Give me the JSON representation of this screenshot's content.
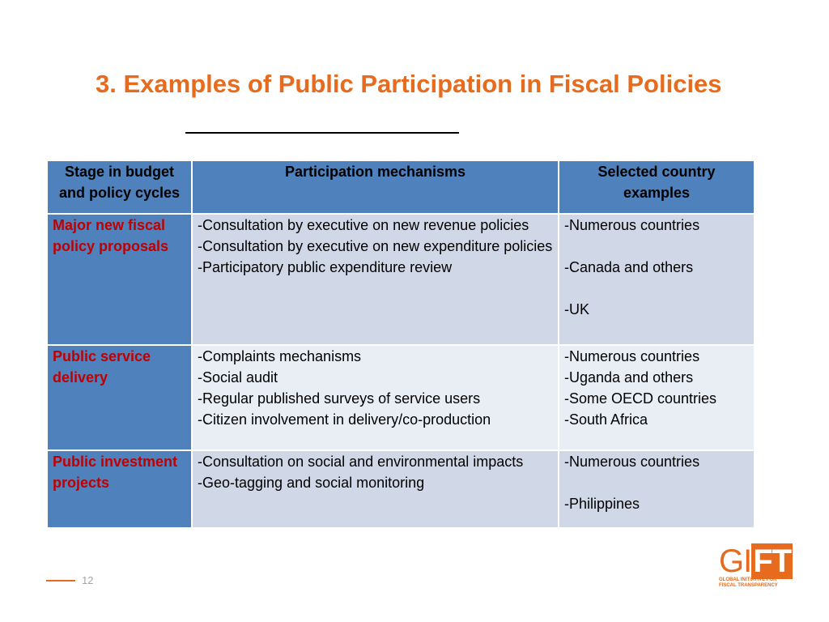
{
  "slide": {
    "title": "3. Examples of Public Participation in Fiscal Policies",
    "page_number": "12"
  },
  "table": {
    "headers": [
      "Stage in budget and policy cycles",
      "Participation mechanisms",
      "Selected country examples"
    ],
    "rows": [
      {
        "stage": "Major new fiscal policy proposals",
        "mechanisms": [
          "-Consultation by executive on new revenue policies",
          "-Consultation by executive on new expenditure policies",
          "-Participatory public expenditure review"
        ],
        "countries": [
          "-Numerous countries",
          "",
          "-Canada and others",
          "",
          "-UK"
        ]
      },
      {
        "stage": "Public service delivery",
        "mechanisms": [
          "-Complaints mechanisms",
          "-Social audit",
          "-Regular published surveys of service users",
          "-Citizen involvement in delivery/co-production"
        ],
        "countries": [
          "-Numerous countries",
          "-Uganda and others",
          "-Some OECD countries",
          "-South Africa"
        ]
      },
      {
        "stage": "Public investment projects",
        "mechanisms": [
          "-Consultation on social and environmental impacts",
          "-Geo-tagging and social monitoring"
        ],
        "countries": [
          "-Numerous countries",
          "",
          "-Philippines"
        ]
      }
    ]
  },
  "logo": {
    "main_gi": "GI",
    "main_ft": "FT",
    "line1": "GLOBAL INITIATIVE FOR",
    "line2": "FISCAL TRANSPARENCY"
  },
  "colors": {
    "title": "#E66B1E",
    "header_bg": "#4F81BD",
    "stage_text": "#C00000",
    "row_dark": "#D0D8E8",
    "row_light": "#E9EDF4"
  }
}
